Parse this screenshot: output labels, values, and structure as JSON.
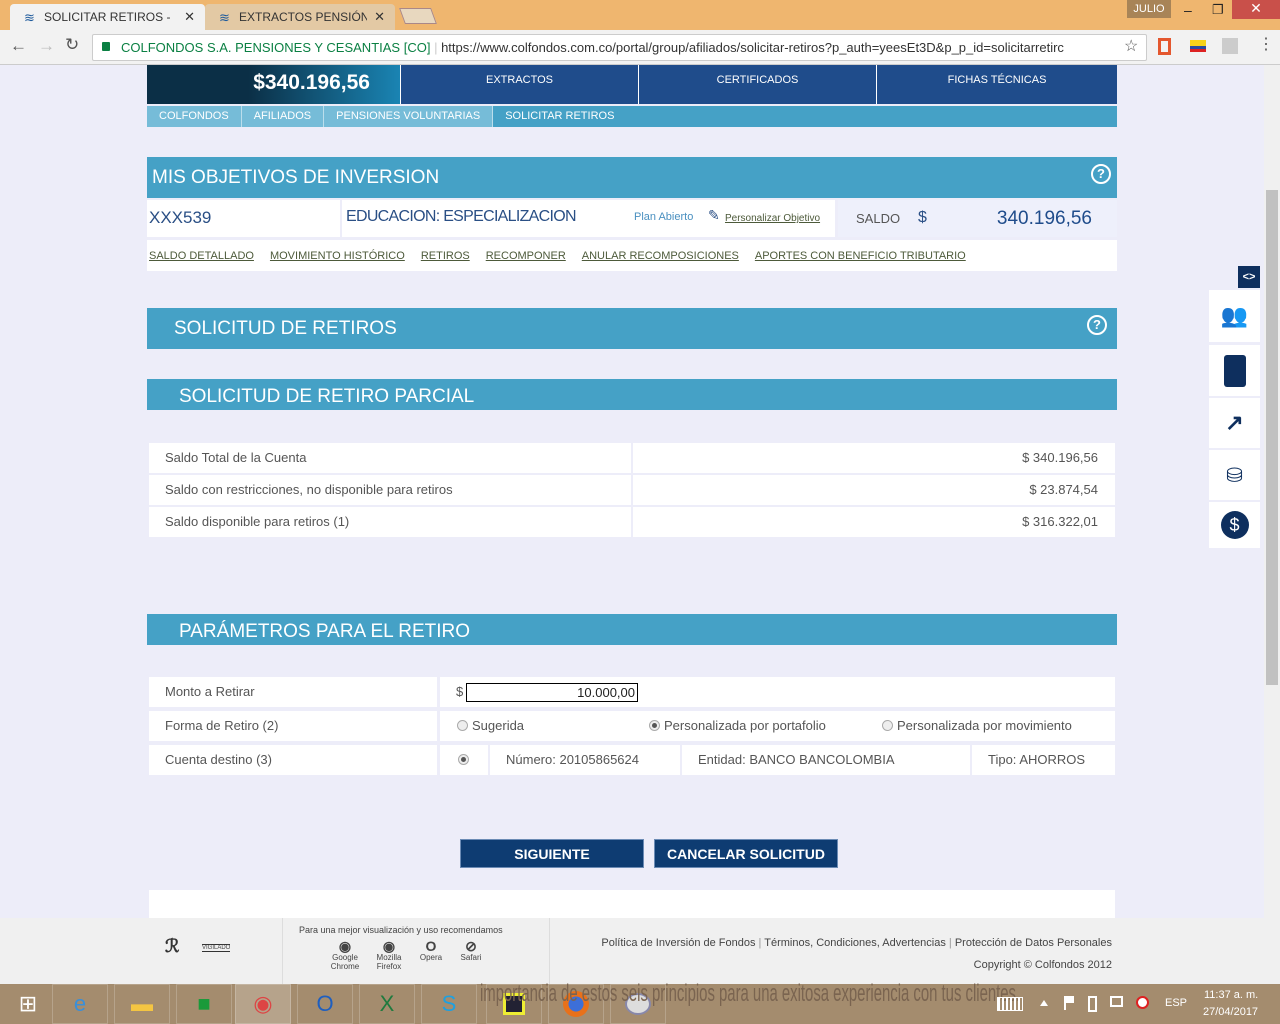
{
  "browser": {
    "tabs": [
      {
        "title": "SOLICITAR RETIROS - Life"
      },
      {
        "title": "EXTRACTOS PENSIÓN OF"
      }
    ],
    "user": "JULIO",
    "site_identity": "COLFONDOS S.A. PENSIONES Y CESANTIAS [CO]",
    "url": "https://www.colfondos.com.co/portal/group/afiliados/solicitar-retiros?p_auth=yeesEt3D&p_p_id=solicitarretirc"
  },
  "header": {
    "balance": "$340.196,56",
    "nav": [
      "EXTRACTOS",
      "CERTIFICADOS",
      "FICHAS TÉCNICAS"
    ]
  },
  "breadcrumb": [
    "COLFONDOS",
    "AFILIADOS",
    "PENSIONES VOLUNTARIAS",
    "SOLICITAR RETIROS"
  ],
  "objetivos": {
    "title": "MIS OBJETIVOS DE INVERSION",
    "account": "XXX539",
    "objective": "EDUCACION: ESPECIALIZACION",
    "plan": "Plan Abierto",
    "personalize": "Personalizar Objetivo",
    "saldo_label": "SALDO",
    "currency": "$",
    "saldo": "340.196,56",
    "links": [
      "SALDO DETALLADO",
      "MOVIMIENTO HISTÓRICO",
      "RETIROS",
      "RECOMPONER",
      "ANULAR RECOMPOSICIONES",
      "APORTES CON BENEFICIO TRIBUTARIO"
    ]
  },
  "solicitud": {
    "title": "SOLICITUD DE RETIROS",
    "parcial_title": "SOLICITUD DE RETIRO PARCIAL",
    "rows": [
      {
        "label": "Saldo Total de la Cuenta",
        "value": "$ 340.196,56"
      },
      {
        "label": "Saldo con restricciones, no disponible para retiros",
        "value": "$ 23.874,54"
      },
      {
        "label": "Saldo disponible para retiros (1)",
        "value": "$ 316.322,01"
      }
    ]
  },
  "parametros": {
    "title": "PARÁMETROS PARA EL RETIRO",
    "monto_label": "Monto a Retirar",
    "currency": "$",
    "monto": "10.000,00",
    "forma_label": "Forma de Retiro (2)",
    "forma_options": [
      "Sugerida",
      "Personalizada por portafolio",
      "Personalizada por movimiento"
    ],
    "forma_selected": "Personalizada por portafolio",
    "cuenta_label": "Cuenta destino (3)",
    "cuenta_numero": "Número: 20105865624",
    "cuenta_entidad": "Entidad: BANCO BANCOLOMBIA",
    "cuenta_tipo": "Tipo: AHORROS"
  },
  "buttons": {
    "next": "SIGUIENTE",
    "cancel": "CANCELAR SOLICITUD"
  },
  "footer": {
    "recommend": "Para una mejor visualización y uso recomendamos",
    "browsers": [
      "Google Chrome",
      "Mozilla Firefox",
      "Opera",
      "Safari"
    ],
    "links": [
      "Política de Inversión de Fondos",
      "Términos, Condiciones, Advertencias",
      "Protección de Datos Personales"
    ],
    "copyright": "Copyright © Colfondos 2012",
    "vigilado": "VIGILADO"
  },
  "taskbar": {
    "overlay_text": "importancia de estos seis principios para una exitosa experiencia con tus clientes.",
    "lang": "ESP",
    "time": "11:37 a. m.",
    "date": "27/04/2017"
  },
  "colors": {
    "nav": "#1f4c8b",
    "section_header": "#45a1c6",
    "button": "#0e3c72"
  }
}
